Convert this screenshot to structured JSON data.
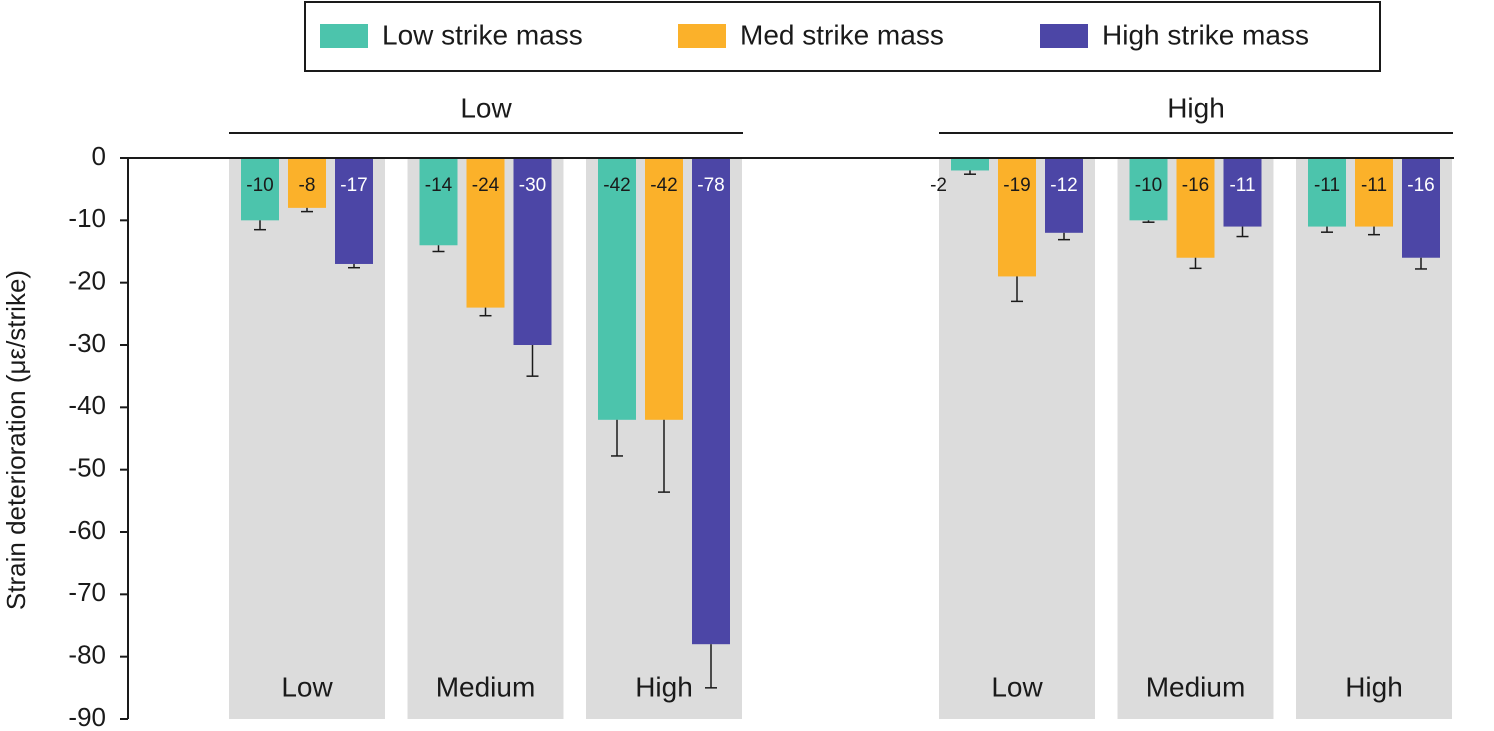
{
  "chart_data": {
    "type": "bar",
    "ylabel": "Strain deterioration (με/strike)",
    "ylim": [
      -90,
      0
    ],
    "yticks": [
      0,
      -10,
      -20,
      -30,
      -40,
      -50,
      -60,
      -70,
      -80,
      -90
    ],
    "series": [
      {
        "name": "Low strike mass",
        "color": "#4cc4ac"
      },
      {
        "name": "Med strike mass",
        "color": "#fbb12a"
      },
      {
        "name": "High strike mass",
        "color": "#4c46a6"
      }
    ],
    "panels": [
      {
        "title": "Low",
        "categories": [
          "Low",
          "Medium",
          "High"
        ],
        "values": [
          [
            -10,
            -14,
            -42
          ],
          [
            -8,
            -24,
            -42
          ],
          [
            -17,
            -30,
            -78
          ]
        ],
        "errors": [
          [
            1.5,
            1,
            5.8
          ],
          [
            0.6,
            1.3,
            11.6
          ],
          [
            0.6,
            5,
            7
          ]
        ]
      },
      {
        "title": "High",
        "categories": [
          "Low",
          "Medium",
          "High"
        ],
        "values": [
          [
            -2,
            -10,
            -11
          ],
          [
            -19,
            -16,
            -11
          ],
          [
            -12,
            -11,
            -16
          ]
        ],
        "errors": [
          [
            0.6,
            0.3,
            0.9
          ],
          [
            4,
            1.7,
            1.3
          ],
          [
            1.1,
            1.6,
            1.8
          ]
        ]
      }
    ]
  }
}
